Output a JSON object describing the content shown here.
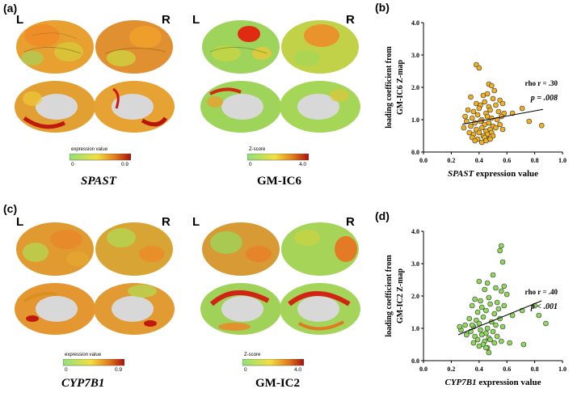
{
  "colors": {
    "brain_low": "#7ad26a",
    "brain_mid": "#e8d832",
    "brain_high": "#b8150e",
    "medial_wall": "#d8d8d8",
    "scatter_b_fill": "#f0b020",
    "scatter_d_fill": "#8ed85a",
    "axis": "#000000"
  },
  "panels": {
    "a": {
      "label": "(a)",
      "brains": [
        {
          "left_label": "L",
          "right_label": "R",
          "caption": "SPAST",
          "colorbar": {
            "title": "expression value",
            "min": "0",
            "max": "0.9"
          }
        },
        {
          "left_label": "L",
          "right_label": "R",
          "caption": "GM-IC6",
          "colorbar": {
            "title": "Z-score",
            "min": "0",
            "max": "4.0"
          }
        }
      ]
    },
    "c": {
      "label": "(c)",
      "brains": [
        {
          "left_label": "L",
          "right_label": "R",
          "caption": "CYP7B1",
          "colorbar": {
            "title": "expression value",
            "min": "0",
            "max": "0.9"
          }
        },
        {
          "left_label": "L",
          "right_label": "R",
          "caption": "GM-IC2",
          "colorbar": {
            "title": "Z-score",
            "min": "0",
            "max": "4.0"
          }
        }
      ]
    }
  },
  "chart_data": [
    {
      "panel": "(b)",
      "type": "scatter",
      "ylabel_line1": "loading coefficient from",
      "ylabel_line2": "GM-IC6 Z-map",
      "xlabel_gene": "SPAST",
      "xlabel_rest": " expression value",
      "xlim": [
        0.0,
        1.0
      ],
      "ylim": [
        0.0,
        4.0
      ],
      "xticks": [
        "0.0",
        "0.2",
        "0.4",
        "0.6",
        "0.8",
        "1.0"
      ],
      "yticks": [
        "0.0",
        "1.0",
        "2.0",
        "3.0",
        "4.0"
      ],
      "annotation_rho": "rho r = .30",
      "annotation_p": "p = .008",
      "fit_line": {
        "x": [
          0.28,
          0.86
        ],
        "y": [
          0.86,
          1.32
        ]
      },
      "x": [
        0.38,
        0.4,
        0.47,
        0.49,
        0.51,
        0.34,
        0.43,
        0.46,
        0.5,
        0.55,
        0.38,
        0.41,
        0.44,
        0.47,
        0.52,
        0.57,
        0.32,
        0.36,
        0.4,
        0.45,
        0.48,
        0.54,
        0.58,
        0.3,
        0.35,
        0.39,
        0.42,
        0.46,
        0.49,
        0.53,
        0.56,
        0.31,
        0.37,
        0.41,
        0.44,
        0.47,
        0.5,
        0.55,
        0.29,
        0.34,
        0.38,
        0.42,
        0.45,
        0.48,
        0.52,
        0.33,
        0.36,
        0.4,
        0.43,
        0.46,
        0.49,
        0.35,
        0.39,
        0.44,
        0.47,
        0.5,
        0.37,
        0.42,
        0.45,
        0.48,
        0.64,
        0.71,
        0.76,
        0.85,
        0.57
      ],
      "y": [
        2.7,
        2.6,
        2.1,
        2.05,
        1.9,
        1.7,
        1.75,
        1.8,
        1.65,
        1.6,
        1.5,
        1.45,
        1.55,
        1.4,
        1.45,
        1.5,
        1.3,
        1.25,
        1.35,
        1.2,
        1.3,
        1.25,
        1.2,
        1.1,
        1.05,
        1.15,
        1.0,
        1.1,
        1.05,
        1.0,
        1.1,
        0.95,
        0.9,
        0.95,
        0.85,
        0.9,
        0.8,
        0.85,
        0.75,
        0.8,
        0.7,
        0.75,
        0.65,
        0.7,
        0.75,
        0.6,
        0.55,
        0.6,
        0.5,
        0.55,
        0.6,
        0.45,
        0.4,
        0.45,
        0.4,
        0.5,
        0.35,
        0.3,
        0.35,
        0.4,
        1.2,
        1.35,
        0.95,
        0.82,
        0.7
      ]
    },
    {
      "panel": "(d)",
      "type": "scatter",
      "ylabel_line1": "loading coefficient from",
      "ylabel_line2": "GM-IC2 Z-map",
      "xlabel_gene": "CYP7B1",
      "xlabel_rest": " expression value",
      "xlim": [
        0.0,
        1.0
      ],
      "ylim": [
        0.0,
        4.0
      ],
      "xticks": [
        "0.0",
        "0.2",
        "0.4",
        "0.6",
        "0.8",
        "1.0"
      ],
      "yticks": [
        "0.0",
        "1.0",
        "2.0",
        "3.0",
        "4.0"
      ],
      "annotation_rho": "rho r = .40",
      "annotation_p": "p < .001",
      "fit_line": {
        "x": [
          0.25,
          0.85
        ],
        "y": [
          0.8,
          1.85
        ]
      },
      "x": [
        0.56,
        0.55,
        0.57,
        0.5,
        0.4,
        0.46,
        0.58,
        0.44,
        0.52,
        0.56,
        0.6,
        0.37,
        0.41,
        0.47,
        0.53,
        0.35,
        0.42,
        0.48,
        0.54,
        0.58,
        0.39,
        0.45,
        0.51,
        0.64,
        0.71,
        0.8,
        0.33,
        0.38,
        0.43,
        0.49,
        0.55,
        0.3,
        0.36,
        0.4,
        0.46,
        0.52,
        0.57,
        0.27,
        0.34,
        0.41,
        0.45,
        0.5,
        0.31,
        0.37,
        0.42,
        0.47,
        0.53,
        0.39,
        0.44,
        0.48,
        0.36,
        0.43,
        0.51,
        0.56,
        0.4,
        0.46,
        0.26,
        0.47,
        0.83,
        0.88,
        0.62,
        0.72,
        0.35,
        0.45
      ],
      "y": [
        3.55,
        3.4,
        3.05,
        2.65,
        2.45,
        2.4,
        2.3,
        2.2,
        2.25,
        2.15,
        2.05,
        1.9,
        1.85,
        1.95,
        1.8,
        1.7,
        1.65,
        1.75,
        1.6,
        1.7,
        1.5,
        1.55,
        1.45,
        1.4,
        1.55,
        1.7,
        1.3,
        1.25,
        1.35,
        1.2,
        1.3,
        1.1,
        1.05,
        1.15,
        1.0,
        1.1,
        1.05,
        0.95,
        0.9,
        0.95,
        0.85,
        0.9,
        0.8,
        0.75,
        0.8,
        0.7,
        0.75,
        0.65,
        0.6,
        0.65,
        0.55,
        0.5,
        0.55,
        0.6,
        0.45,
        0.4,
        1.05,
        0.25,
        1.4,
        1.15,
        0.55,
        0.5,
        1.1,
        0.4
      ]
    }
  ]
}
